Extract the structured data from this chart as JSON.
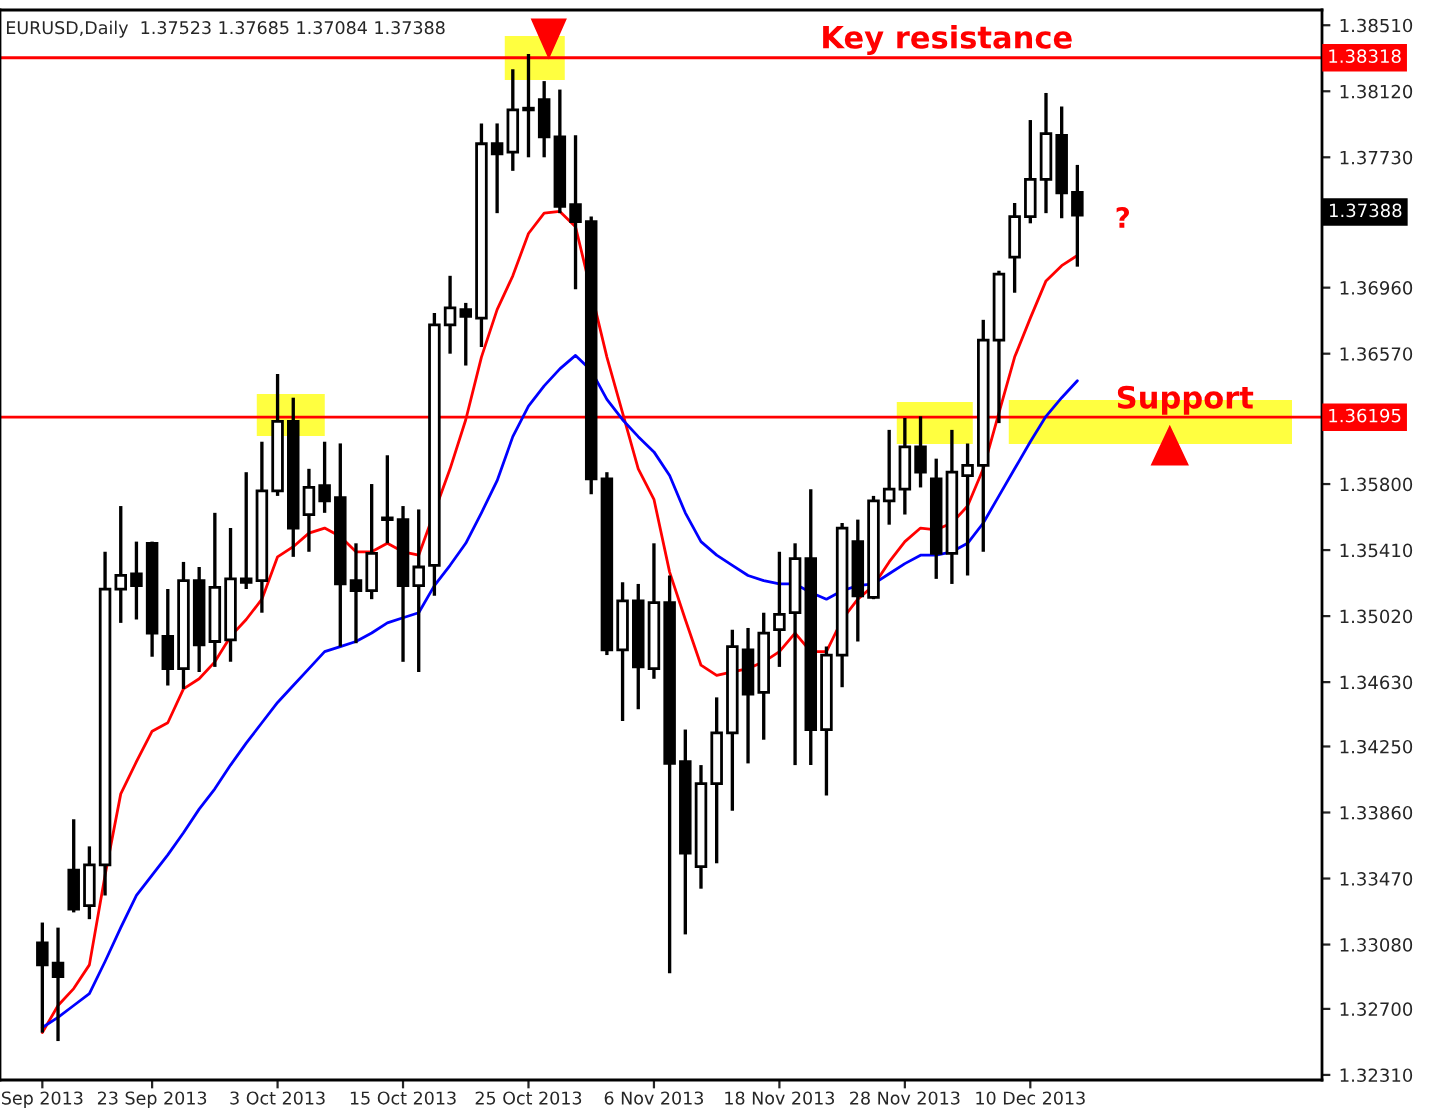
{
  "chart_data": {
    "type": "candlestick",
    "title": "EURUSD,Daily  1.37523 1.37685 1.37084 1.37388",
    "categories": [
      "Sep 2013",
      null,
      null,
      null,
      null,
      null,
      null,
      "23 Sep 2013",
      null,
      null,
      null,
      null,
      null,
      null,
      null,
      "3 Oct 2013",
      null,
      null,
      null,
      null,
      null,
      null,
      null,
      "15 Oct 2013",
      null,
      null,
      null,
      null,
      null,
      null,
      null,
      "25 Oct 2013",
      null,
      null,
      null,
      null,
      null,
      null,
      null,
      "6 Nov 2013",
      null,
      null,
      null,
      null,
      null,
      null,
      null,
      "18 Nov 2013",
      null,
      null,
      null,
      null,
      null,
      null,
      null,
      "28 Nov 2013",
      null,
      null,
      null,
      null,
      null,
      null,
      null,
      "10 Dec 2013",
      null,
      null,
      null
    ],
    "ohlc": [
      [
        1.3309,
        1.3321,
        1.3256,
        1.3296
      ],
      [
        1.3297,
        1.3318,
        1.3251,
        1.3289
      ],
      [
        1.3352,
        1.3382,
        1.3327,
        1.3329
      ],
      [
        1.3331,
        1.3366,
        1.3323,
        1.3355
      ],
      [
        1.3355,
        1.354,
        1.3337,
        1.3518
      ],
      [
        1.3518,
        1.3567,
        1.3498,
        1.3526
      ],
      [
        1.3527,
        1.3546,
        1.35,
        1.352
      ],
      [
        1.3545,
        1.3546,
        1.3478,
        1.3492
      ],
      [
        1.349,
        1.3518,
        1.3461,
        1.3471
      ],
      [
        1.3471,
        1.3534,
        1.3459,
        1.3523
      ],
      [
        1.3523,
        1.3531,
        1.3469,
        1.3485
      ],
      [
        1.3487,
        1.3563,
        1.3472,
        1.3519
      ],
      [
        1.3488,
        1.3554,
        1.3475,
        1.3524
      ],
      [
        1.3524,
        1.3587,
        1.3518,
        1.3522
      ],
      [
        1.3523,
        1.3605,
        1.3504,
        1.3576
      ],
      [
        1.3576,
        1.3645,
        1.3573,
        1.3617
      ],
      [
        1.3617,
        1.3631,
        1.3537,
        1.3554
      ],
      [
        1.3562,
        1.3589,
        1.354,
        1.3578
      ],
      [
        1.3579,
        1.3605,
        1.3563,
        1.357
      ],
      [
        1.3572,
        1.3604,
        1.3484,
        1.3521
      ],
      [
        1.3523,
        1.3545,
        1.3486,
        1.3517
      ],
      [
        1.3517,
        1.358,
        1.3512,
        1.3539
      ],
      [
        1.3559,
        1.3597,
        1.3545,
        1.356
      ],
      [
        1.3559,
        1.3567,
        1.3475,
        1.352
      ],
      [
        1.352,
        1.3565,
        1.3469,
        1.3531
      ],
      [
        1.3532,
        1.3681,
        1.3514,
        1.3674
      ],
      [
        1.3674,
        1.3703,
        1.3657,
        1.3684
      ],
      [
        1.3683,
        1.3687,
        1.365,
        1.3679
      ],
      [
        1.3678,
        1.3793,
        1.3661,
        1.3781
      ],
      [
        1.3781,
        1.3793,
        1.374,
        1.3775
      ],
      [
        1.3776,
        1.3825,
        1.3765,
        1.3801
      ],
      [
        1.3802,
        1.3834,
        1.3773,
        1.3801
      ],
      [
        1.3807,
        1.3818,
        1.3773,
        1.3785
      ],
      [
        1.3785,
        1.3813,
        1.374,
        1.3744
      ],
      [
        1.3745,
        1.3786,
        1.3695,
        1.3735
      ],
      [
        1.3735,
        1.3738,
        1.3574,
        1.3583
      ],
      [
        1.3583,
        1.3587,
        1.3479,
        1.3482
      ],
      [
        1.3482,
        1.3522,
        1.344,
        1.3511
      ],
      [
        1.3511,
        1.3521,
        1.3447,
        1.3472
      ],
      [
        1.3471,
        1.3545,
        1.3465,
        1.351
      ],
      [
        1.351,
        1.3526,
        1.3291,
        1.3415
      ],
      [
        1.3416,
        1.3435,
        1.3314,
        1.3362
      ],
      [
        1.3354,
        1.3414,
        1.3341,
        1.3403
      ],
      [
        1.3403,
        1.3454,
        1.3356,
        1.3433
      ],
      [
        1.3433,
        1.3494,
        1.3387,
        1.3484
      ],
      [
        1.3482,
        1.3495,
        1.3415,
        1.3456
      ],
      [
        1.3457,
        1.3504,
        1.3429,
        1.3492
      ],
      [
        1.3494,
        1.354,
        1.3472,
        1.3503
      ],
      [
        1.3504,
        1.3545,
        1.3414,
        1.3536
      ],
      [
        1.3536,
        1.3577,
        1.3414,
        1.3435
      ],
      [
        1.3435,
        1.3484,
        1.3396,
        1.3479
      ],
      [
        1.3479,
        1.3557,
        1.346,
        1.3554
      ],
      [
        1.3546,
        1.3559,
        1.3487,
        1.3514
      ],
      [
        1.3513,
        1.3573,
        1.3512,
        1.357
      ],
      [
        1.357,
        1.3612,
        1.3556,
        1.3577
      ],
      [
        1.3577,
        1.3619,
        1.3562,
        1.3602
      ],
      [
        1.3602,
        1.362,
        1.3578,
        1.3587
      ],
      [
        1.3583,
        1.3595,
        1.3524,
        1.3539
      ],
      [
        1.3539,
        1.3612,
        1.3521,
        1.3587
      ],
      [
        1.3585,
        1.3604,
        1.3526,
        1.3591
      ],
      [
        1.3591,
        1.3677,
        1.354,
        1.3665
      ],
      [
        1.3665,
        1.3706,
        1.3616,
        1.3704
      ],
      [
        1.3714,
        1.3746,
        1.3693,
        1.3738
      ],
      [
        1.3738,
        1.3795,
        1.3734,
        1.376
      ],
      [
        1.376,
        1.3811,
        1.374,
        1.3787
      ],
      [
        1.3786,
        1.3803,
        1.3737,
        1.3752
      ],
      [
        1.37523,
        1.37685,
        1.37084,
        1.37388
      ]
    ],
    "series": [
      {
        "type": "line",
        "color": "#ff0000",
        "values": [
          1.3256,
          1.3272,
          1.3282,
          1.3296,
          1.3349,
          1.3397,
          1.3416,
          1.3434,
          1.3439,
          1.3459,
          1.3465,
          1.3475,
          1.349,
          1.35,
          1.3512,
          1.3537,
          1.3543,
          1.3551,
          1.3554,
          1.3549,
          1.354,
          1.354,
          1.3545,
          1.354,
          1.3538,
          null,
          1.3589,
          1.3618,
          1.3655,
          1.3683,
          1.3703,
          1.3728,
          1.374,
          1.3741,
          1.3732,
          null,
          1.3655,
          1.3622,
          1.3589,
          1.3571,
          1.3528,
          1.35,
          1.3473,
          1.3467,
          1.3469,
          1.3471,
          1.3475,
          1.3481,
          1.3492,
          1.3481,
          1.3481,
          1.35,
          1.3512,
          1.352,
          1.3534,
          1.3546,
          1.3554,
          1.3553,
          1.3557,
          1.3567,
          1.3589,
          1.3622,
          1.3655,
          1.3678,
          1.37,
          1.3709,
          1.3715
        ]
      },
      {
        "type": "line",
        "color": "#0000ff",
        "values": [
          1.3259,
          1.3265,
          1.3272,
          1.3279,
          1.3298,
          1.3318,
          1.3337,
          1.3349,
          1.3361,
          1.3374,
          1.3388,
          1.34,
          1.3414,
          1.3427,
          1.3439,
          1.3451,
          1.3461,
          1.3471,
          1.3481,
          1.3484,
          1.3487,
          1.3492,
          1.3498,
          1.3501,
          1.3504,
          1.352,
          1.3532,
          1.3545,
          1.3563,
          1.3582,
          1.3608,
          1.3626,
          1.3638,
          1.3648,
          1.3656,
          1.3647,
          1.363,
          1.3618,
          1.3608,
          1.3599,
          1.3585,
          1.3563,
          1.3546,
          1.3538,
          1.3532,
          1.3526,
          1.3523,
          1.3521,
          1.3521,
          1.3516,
          1.3512,
          1.3517,
          1.352,
          1.3521,
          1.3527,
          1.3533,
          1.3538,
          1.3538,
          1.354,
          1.3545,
          1.3557,
          1.3573,
          1.3589,
          1.3605,
          1.362,
          1.3631,
          1.3641
        ]
      }
    ],
    "ylim": [
      1.3228,
      1.386
    ],
    "yticks": [
      {
        "value": 1.3851,
        "label": "1.38510"
      },
      {
        "value": 1.3812,
        "label": "1.38120"
      },
      {
        "value": 1.3773,
        "label": "1.37730"
      },
      {
        "value": 1.3696,
        "label": "1.36960"
      },
      {
        "value": 1.3657,
        "label": "1.36570"
      },
      {
        "value": 1.358,
        "label": "1.35800"
      },
      {
        "value": 1.3541,
        "label": "1.35410"
      },
      {
        "value": 1.3502,
        "label": "1.35020"
      },
      {
        "value": 1.3463,
        "label": "1.34630"
      },
      {
        "value": 1.3425,
        "label": "1.34250"
      },
      {
        "value": 1.3386,
        "label": "1.33860"
      },
      {
        "value": 1.3347,
        "label": "1.33470"
      },
      {
        "value": 1.3308,
        "label": "1.33080"
      },
      {
        "value": 1.327,
        "label": "1.32700"
      },
      {
        "value": 1.3231,
        "label": "1.32310"
      }
    ],
    "ref_lines": [
      {
        "axis": "y",
        "value": 1.38318,
        "label": "1.38318",
        "color": "#ff0000"
      },
      {
        "axis": "y",
        "value": 1.36195,
        "label": "1.36195",
        "color": "#ff0000"
      }
    ],
    "annotations": [
      "Key resistance",
      "Support",
      "?",
      "1.37388"
    ]
  }
}
